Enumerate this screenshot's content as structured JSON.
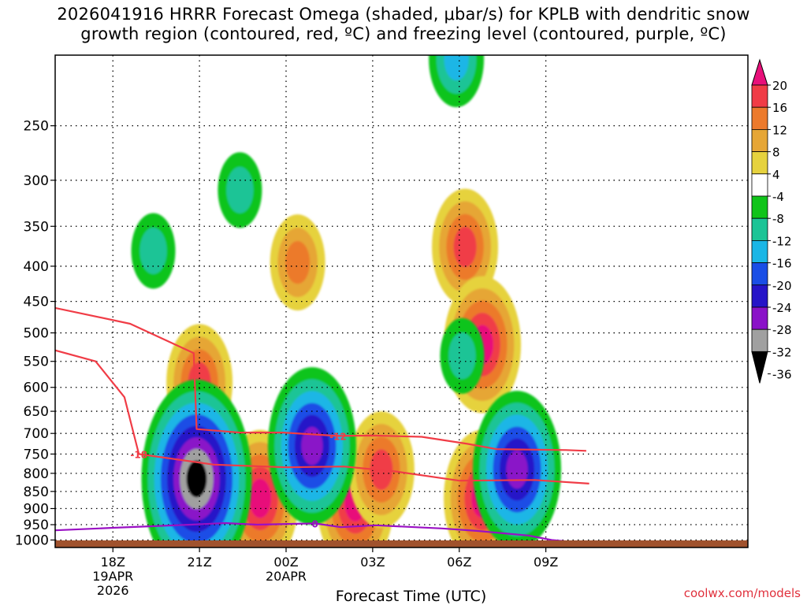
{
  "title": {
    "line1": "2026041916 HRRR Forecast Omega (shaded, μbar/s) for KPLB with dendritic snow",
    "line2": "growth region (contoured, red, ºC) and freezing level (contoured, purple, ºC)"
  },
  "credit": "coolwx.com/models",
  "chart_data": {
    "type": "heatmap",
    "title": "2026041916 HRRR Forecast Omega (shaded, μbar/s) for KPLB with dendritic snow growth region (contoured, red, ºC) and freezing level (contoured, purple, ºC)",
    "xlabel": "Forecast Time (UTC)",
    "ylabel": "",
    "x_axis": {
      "range_hours_utc": [
        16,
        40
      ],
      "ticks": [
        {
          "hour": 18,
          "label": "18Z",
          "sub1": "19APR",
          "sub2": "2026"
        },
        {
          "hour": 21,
          "label": "21Z",
          "sub1": "",
          "sub2": ""
        },
        {
          "hour": 24,
          "label": "00Z",
          "sub1": "20APR",
          "sub2": ""
        },
        {
          "hour": 27,
          "label": "03Z",
          "sub1": "",
          "sub2": ""
        },
        {
          "hour": 30,
          "label": "06Z",
          "sub1": "",
          "sub2": ""
        },
        {
          "hour": 33,
          "label": "09Z",
          "sub1": "",
          "sub2": ""
        }
      ]
    },
    "y_axis": {
      "units": "mb",
      "range": [
        1020,
        200
      ],
      "ticks": [
        250,
        300,
        350,
        400,
        450,
        500,
        550,
        600,
        650,
        700,
        750,
        800,
        850,
        900,
        950,
        1000
      ],
      "grid": true
    },
    "colorbar": {
      "labels": [
        "20",
        "16",
        "12",
        "8",
        "4",
        "-4",
        "-8",
        "-12",
        "-16",
        "-20",
        "-24",
        "-28",
        "-32",
        "-36"
      ],
      "colors": [
        "#e8107a",
        "#f03c46",
        "#ec7a2c",
        "#e6a636",
        "#e6d23e",
        "#ffffff",
        "#10c41a",
        "#1cc496",
        "#1ab6e6",
        "#1a4ee6",
        "#2614c8",
        "#8a12c8",
        "#a0a0a0",
        "#000000"
      ]
    },
    "omega_features": [
      {
        "hour": 24.4,
        "p": 395,
        "value": 12
      },
      {
        "hour": 30.2,
        "p": 375,
        "value": 16
      },
      {
        "hour": 30.8,
        "p": 520,
        "value": 20
      },
      {
        "hour": 21.0,
        "p": 590,
        "value": 16
      },
      {
        "hour": 23.1,
        "p": 870,
        "value": 20
      },
      {
        "hour": 26.4,
        "p": 880,
        "value": 20
      },
      {
        "hour": 27.3,
        "p": 790,
        "value": 16
      },
      {
        "hour": 30.8,
        "p": 870,
        "value": 20
      },
      {
        "hour": 20.9,
        "p": 815,
        "value": -36
      },
      {
        "hour": 24.9,
        "p": 730,
        "value": -28
      },
      {
        "hour": 32.0,
        "p": 790,
        "value": -28
      },
      {
        "hour": 30.1,
        "p": 540,
        "value": -12
      },
      {
        "hour": 19.4,
        "p": 380,
        "value": -12
      },
      {
        "hour": 29.9,
        "p": 200,
        "value": -16
      },
      {
        "hour": 22.4,
        "p": 310,
        "value": -12
      }
    ],
    "contours": [
      {
        "label": "-12",
        "color": "#f03c46",
        "points": [
          [
            16,
            460
          ],
          [
            18.6,
            485
          ],
          [
            20.8,
            535
          ],
          [
            20.9,
            690
          ],
          [
            22.4,
            698
          ],
          [
            23.9,
            698
          ],
          [
            25.8,
            706
          ],
          [
            27.0,
            705
          ],
          [
            28.7,
            708
          ],
          [
            30.3,
            725
          ],
          [
            31.3,
            738
          ],
          [
            33.7,
            740
          ],
          [
            34.4,
            742
          ]
        ]
      },
      {
        "label": "-18",
        "color": "#f03c46",
        "points": [
          [
            16,
            530
          ],
          [
            17.4,
            550
          ],
          [
            18.4,
            620
          ],
          [
            18.9,
            750
          ],
          [
            21.5,
            777
          ],
          [
            24.0,
            784
          ],
          [
            26.0,
            782
          ],
          [
            27.8,
            795
          ],
          [
            30.0,
            820
          ],
          [
            32.6,
            818
          ],
          [
            34.5,
            828
          ]
        ]
      },
      {
        "label": "0",
        "color": "#9a10c4",
        "points": [
          [
            16,
            968
          ],
          [
            18.0,
            960
          ],
          [
            20.7,
            950
          ],
          [
            21.9,
            945
          ],
          [
            23.0,
            950
          ],
          [
            25.0,
            946
          ],
          [
            25.9,
            958
          ],
          [
            27.1,
            952
          ],
          [
            29.4,
            962
          ],
          [
            30.6,
            970
          ],
          [
            32.4,
            985
          ],
          [
            33.2,
            1000
          ],
          [
            34.1,
            1008
          ]
        ]
      }
    ],
    "legend": "right"
  }
}
